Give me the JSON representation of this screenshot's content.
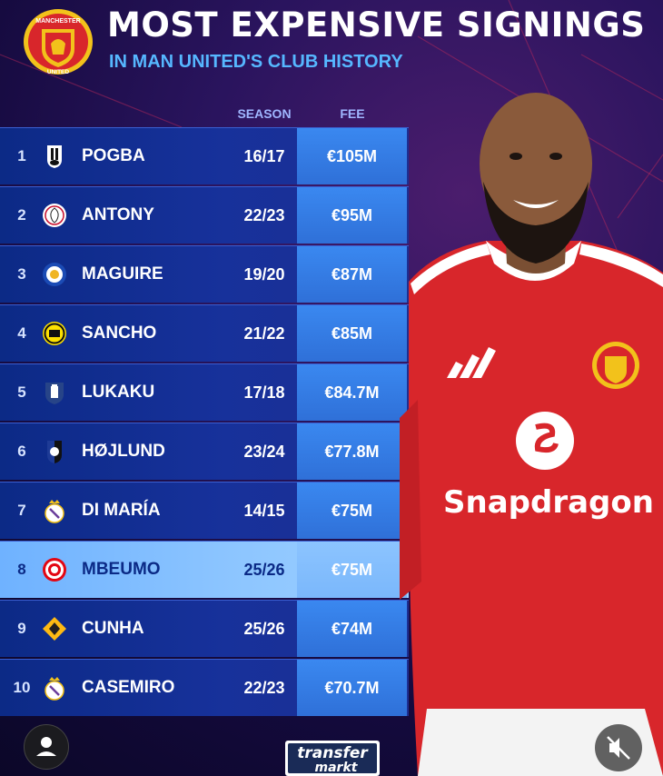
{
  "header": {
    "title": "MOST EXPENSIVE SIGNINGS",
    "subtitle": "IN MAN UNITED'S CLUB HISTORY"
  },
  "columns": {
    "season": "SEASON",
    "fee": "FEE"
  },
  "rows": [
    {
      "rank": "1",
      "name": "POGBA",
      "season": "16/17",
      "fee": "€105M",
      "club_icon": "juventus-crest"
    },
    {
      "rank": "2",
      "name": "ANTONY",
      "season": "22/23",
      "fee": "€95M",
      "club_icon": "ajax-crest"
    },
    {
      "rank": "3",
      "name": "MAGUIRE",
      "season": "19/20",
      "fee": "€87M",
      "club_icon": "leicester-crest"
    },
    {
      "rank": "4",
      "name": "SANCHO",
      "season": "21/22",
      "fee": "€85M",
      "club_icon": "dortmund-crest"
    },
    {
      "rank": "5",
      "name": "LUKAKU",
      "season": "17/18",
      "fee": "€84.7M",
      "club_icon": "everton-crest"
    },
    {
      "rank": "6",
      "name": "HØJLUND",
      "season": "23/24",
      "fee": "€77.8M",
      "club_icon": "atalanta-crest"
    },
    {
      "rank": "7",
      "name": "DI MARÍA",
      "season": "14/15",
      "fee": "€75M",
      "club_icon": "real-madrid-crest"
    },
    {
      "rank": "8",
      "name": "MBEUMO",
      "season": "25/26",
      "fee": "€75M",
      "club_icon": "brentford-crest",
      "highlight": true
    },
    {
      "rank": "9",
      "name": "CUNHA",
      "season": "25/26",
      "fee": "€74M",
      "club_icon": "wolves-crest"
    },
    {
      "rank": "10",
      "name": "CASEMIRO",
      "season": "22/23",
      "fee": "€70.7M",
      "club_icon": "real-madrid-crest"
    }
  ],
  "crest": {
    "top_text": "MANCHESTER",
    "bottom_text": "UNITED"
  },
  "shirt": {
    "sponsor": "Snapdragon"
  },
  "footer": {
    "logo_line1": "transfer",
    "logo_line2": "markt"
  },
  "colors": {
    "accent": "#56b7ff",
    "fee_cell": "#2f70d8",
    "highlight_row": "#8ec6ff",
    "shirt_red": "#d8262b"
  }
}
